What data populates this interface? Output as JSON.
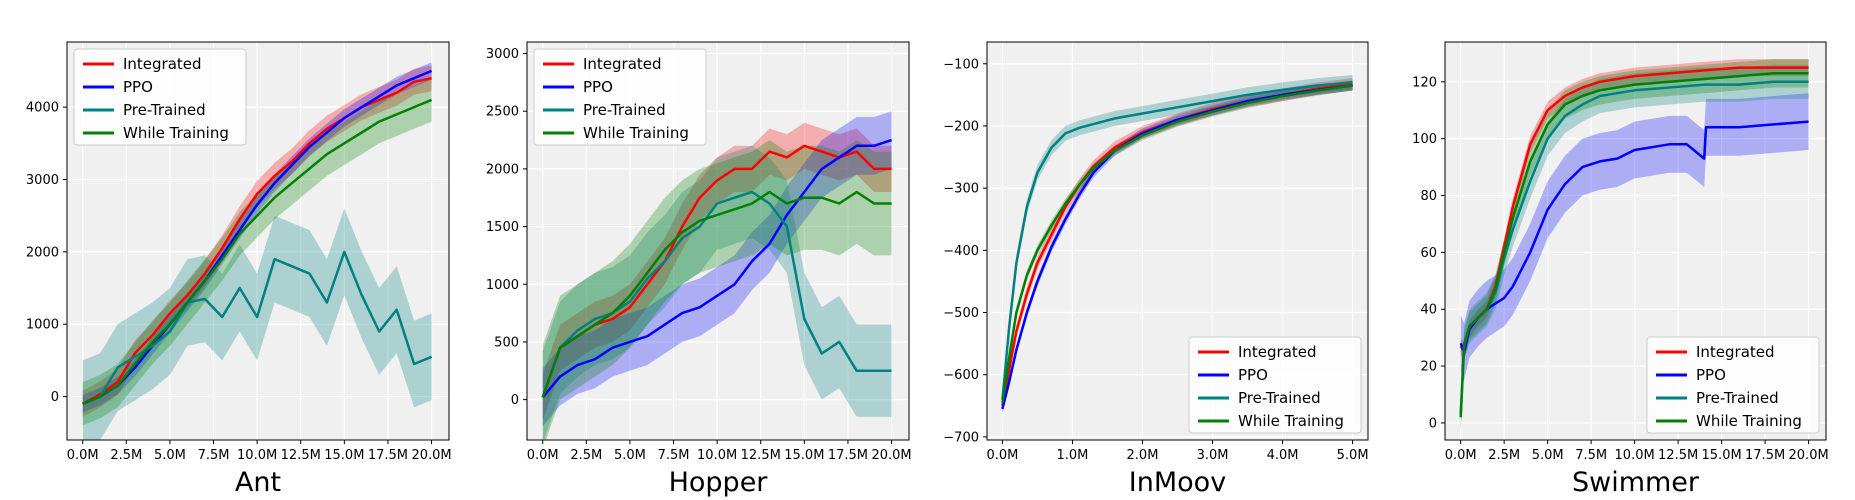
{
  "figure": {
    "background": "#ffffff",
    "plot_background": "#f0f0f0",
    "grid_color": "#ffffff"
  },
  "legend_labels": [
    "Integrated",
    "PPO",
    "Pre-Trained",
    "While Training"
  ],
  "colors": {
    "Integrated": "#ff0000",
    "PPO": "#0000ff",
    "Pre-Trained": "#008080",
    "While Training": "#008000"
  },
  "chart_data": [
    {
      "type": "line",
      "title": "Ant",
      "xlabel": "",
      "ylabel": "",
      "xlim": [
        -0.9,
        21.0
      ],
      "ylim": [
        -600,
        4900
      ],
      "xticks": [
        0,
        2.5,
        5,
        7.5,
        10,
        12.5,
        15,
        17.5,
        20
      ],
      "xticklabels": [
        "0.0M",
        "2.5M",
        "5.0M",
        "7.5M",
        "10.0M",
        "12.5M",
        "15.0M",
        "17.5M",
        "20.0M"
      ],
      "yticks": [
        0,
        1000,
        2000,
        3000,
        4000
      ],
      "yticklabels": [
        "0",
        "1000",
        "2000",
        "3000",
        "4000"
      ],
      "grid": true,
      "legend_position": "upper-left",
      "series": [
        {
          "name": "Integrated",
          "x": [
            0,
            1,
            2,
            3,
            4,
            5,
            6,
            7,
            8,
            9,
            10,
            11,
            12,
            13,
            14,
            15,
            16,
            17,
            18,
            19,
            20
          ],
          "y": [
            -100,
            30,
            200,
            600,
            850,
            1150,
            1400,
            1700,
            2050,
            2450,
            2800,
            3050,
            3250,
            3500,
            3700,
            3850,
            4000,
            4100,
            4200,
            4350,
            4400
          ],
          "band": 180
        },
        {
          "name": "PPO",
          "x": [
            0,
            1,
            2,
            3,
            4,
            5,
            6,
            7,
            8,
            9,
            10,
            11,
            12,
            13,
            14,
            15,
            16,
            17,
            18,
            19,
            20
          ],
          "y": [
            -100,
            0,
            150,
            400,
            700,
            1000,
            1300,
            1600,
            1950,
            2300,
            2650,
            2950,
            3200,
            3450,
            3650,
            3850,
            4000,
            4150,
            4300,
            4400,
            4500
          ],
          "band": 120
        },
        {
          "name": "Pre-Trained",
          "x": [
            0,
            1,
            2,
            3,
            4,
            5,
            6,
            7,
            8,
            9,
            10,
            11,
            12,
            13,
            14,
            15,
            16,
            17,
            18,
            19,
            20
          ],
          "y": [
            -100,
            0,
            400,
            550,
            700,
            900,
            1300,
            1350,
            1100,
            1500,
            1100,
            1900,
            1800,
            1700,
            1300,
            2000,
            1400,
            900,
            1200,
            450,
            550
          ],
          "band": 600
        },
        {
          "name": "While Training",
          "x": [
            0,
            1,
            2,
            3,
            4,
            5,
            6,
            7,
            8,
            9,
            10,
            11,
            12,
            13,
            14,
            15,
            16,
            17,
            18,
            19,
            20
          ],
          "y": [
            -100,
            0,
            150,
            450,
            750,
            1000,
            1300,
            1600,
            1900,
            2250,
            2500,
            2750,
            2950,
            3150,
            3350,
            3500,
            3650,
            3800,
            3900,
            4000,
            4100
          ],
          "band": 300
        }
      ]
    },
    {
      "type": "line",
      "title": "Hopper",
      "xlabel": "",
      "ylabel": "",
      "xlim": [
        -0.9,
        21.0
      ],
      "ylim": [
        -350,
        3100
      ],
      "xticks": [
        0,
        2.5,
        5,
        7.5,
        10,
        12.5,
        15,
        17.5,
        20
      ],
      "xticklabels": [
        "0.0M",
        "2.5M",
        "5.0M",
        "7.5M",
        "10.0M",
        "12.5M",
        "15.0M",
        "17.5M",
        "20.0M"
      ],
      "yticks": [
        0,
        500,
        1000,
        1500,
        2000,
        2500,
        3000
      ],
      "yticklabels": [
        "0",
        "500",
        "1000",
        "1500",
        "2000",
        "2500",
        "3000"
      ],
      "grid": true,
      "legend_position": "upper-left",
      "series": [
        {
          "name": "Integrated",
          "x": [
            0,
            1,
            2,
            3,
            4,
            5,
            6,
            7,
            8,
            9,
            10,
            11,
            12,
            13,
            14,
            15,
            16,
            17,
            18,
            19,
            20
          ],
          "y": [
            20,
            450,
            550,
            650,
            700,
            800,
            1000,
            1200,
            1500,
            1750,
            1900,
            2000,
            2000,
            2150,
            2100,
            2200,
            2150,
            2100,
            2150,
            2000,
            2000
          ],
          "band": 200
        },
        {
          "name": "PPO",
          "x": [
            0,
            1,
            2,
            3,
            4,
            5,
            6,
            7,
            8,
            9,
            10,
            11,
            12,
            13,
            14,
            15,
            16,
            17,
            18,
            19,
            20
          ],
          "y": [
            20,
            200,
            300,
            350,
            450,
            500,
            550,
            650,
            750,
            800,
            900,
            1000,
            1200,
            1350,
            1600,
            1800,
            2000,
            2100,
            2200,
            2200,
            2250
          ],
          "band": 250
        },
        {
          "name": "Pre-Trained",
          "x": [
            0,
            1,
            2,
            3,
            4,
            5,
            6,
            7,
            8,
            9,
            10,
            11,
            12,
            13,
            14,
            15,
            16,
            17,
            18,
            19,
            20
          ],
          "y": [
            20,
            450,
            600,
            700,
            750,
            850,
            1050,
            1200,
            1400,
            1500,
            1700,
            1750,
            1800,
            1700,
            1500,
            700,
            400,
            500,
            250,
            250,
            250
          ],
          "band": 400
        },
        {
          "name": "While Training",
          "x": [
            0,
            1,
            2,
            3,
            4,
            5,
            6,
            7,
            8,
            9,
            10,
            11,
            12,
            13,
            14,
            15,
            16,
            17,
            18,
            19,
            20
          ],
          "y": [
            20,
            450,
            550,
            650,
            750,
            900,
            1100,
            1300,
            1450,
            1550,
            1600,
            1650,
            1700,
            1800,
            1700,
            1750,
            1750,
            1700,
            1800,
            1700,
            1700
          ],
          "band": 450
        }
      ]
    },
    {
      "type": "line",
      "title": "InMoov",
      "xlabel": "",
      "ylabel": "",
      "xlim": [
        -0.22,
        5.22
      ],
      "ylim": [
        -705,
        -65
      ],
      "xticks": [
        0,
        1,
        2,
        3,
        4,
        5
      ],
      "xticklabels": [
        "0.0M",
        "1.0M",
        "2.0M",
        "3.0M",
        "4.0M",
        "5.0M"
      ],
      "yticks": [
        -700,
        -600,
        -500,
        -400,
        -300,
        -200,
        -100
      ],
      "yticklabels": [
        "−700",
        "−600",
        "−500",
        "−400",
        "−300",
        "−200",
        "−100"
      ],
      "grid": true,
      "legend_position": "lower-right",
      "series": [
        {
          "name": "Integrated",
          "x": [
            0,
            0.1,
            0.2,
            0.35,
            0.5,
            0.7,
            0.9,
            1.1,
            1.3,
            1.6,
            2,
            2.5,
            3,
            3.5,
            4,
            4.5,
            5
          ],
          "y": [
            -650,
            -590,
            -530,
            -470,
            -420,
            -375,
            -330,
            -295,
            -265,
            -235,
            -210,
            -190,
            -173,
            -160,
            -150,
            -140,
            -133
          ],
          "band": 10
        },
        {
          "name": "PPO",
          "x": [
            0,
            0.1,
            0.2,
            0.35,
            0.5,
            0.7,
            0.9,
            1.1,
            1.3,
            1.6,
            2,
            2.5,
            3,
            3.5,
            4,
            4.5,
            5
          ],
          "y": [
            -655,
            -610,
            -560,
            -500,
            -450,
            -395,
            -350,
            -310,
            -275,
            -240,
            -212,
            -190,
            -175,
            -160,
            -150,
            -142,
            -135
          ],
          "band": 8
        },
        {
          "name": "Pre-Trained",
          "x": [
            0,
            0.1,
            0.2,
            0.35,
            0.5,
            0.7,
            0.9,
            1.1,
            1.3,
            1.6,
            2,
            2.5,
            3,
            3.5,
            4,
            4.5,
            5
          ],
          "y": [
            -640,
            -520,
            -420,
            -330,
            -275,
            -235,
            -212,
            -203,
            -197,
            -188,
            -180,
            -170,
            -160,
            -150,
            -142,
            -135,
            -130
          ],
          "band": 12
        },
        {
          "name": "While Training",
          "x": [
            0,
            0.1,
            0.2,
            0.35,
            0.5,
            0.7,
            0.9,
            1.1,
            1.3,
            1.6,
            2,
            2.5,
            3,
            3.5,
            4,
            4.5,
            5
          ],
          "y": [
            -645,
            -570,
            -500,
            -440,
            -400,
            -360,
            -325,
            -295,
            -268,
            -240,
            -215,
            -193,
            -177,
            -163,
            -152,
            -143,
            -135
          ],
          "band": 8
        }
      ]
    },
    {
      "type": "line",
      "title": "Swimmer",
      "xlabel": "",
      "ylabel": "",
      "xlim": [
        -0.9,
        21.0
      ],
      "ylim": [
        -6,
        134
      ],
      "xticks": [
        0,
        2.5,
        5,
        7.5,
        10,
        12.5,
        15,
        17.5,
        20
      ],
      "xticklabels": [
        "0.0M",
        "2.5M",
        "5.0M",
        "7.5M",
        "10.0M",
        "12.5M",
        "15.0M",
        "17.5M",
        "20.0M"
      ],
      "yticks": [
        0,
        20,
        40,
        60,
        80,
        100,
        120
      ],
      "yticklabels": [
        "0",
        "20",
        "40",
        "60",
        "80",
        "100",
        "120"
      ],
      "grid": true,
      "legend_position": "lower-right",
      "series": [
        {
          "name": "Integrated",
          "x": [
            0,
            0.2,
            0.5,
            1,
            1.5,
            2,
            2.5,
            3,
            4,
            5,
            6,
            7,
            8,
            10,
            12,
            14,
            16,
            18,
            20
          ],
          "y": [
            27,
            25,
            33,
            37,
            40,
            48,
            62,
            76,
            98,
            110,
            115,
            118,
            120,
            122,
            123,
            124,
            125,
            125,
            125
          ],
          "band": 3
        },
        {
          "name": "PPO",
          "x": [
            0,
            0.2,
            0.5,
            1,
            1.5,
            2,
            2.5,
            3,
            4,
            5,
            6,
            7,
            8,
            9,
            10,
            11,
            12,
            13,
            14,
            14.1,
            16,
            18,
            20
          ],
          "y": [
            28,
            25,
            33,
            37,
            40,
            42,
            44,
            48,
            60,
            75,
            84,
            90,
            92,
            93,
            96,
            97,
            98,
            98,
            93,
            104,
            104,
            105,
            106
          ],
          "band": 10
        },
        {
          "name": "Pre-Trained",
          "x": [
            0,
            0.2,
            0.5,
            1,
            1.5,
            2,
            2.5,
            3,
            4,
            5,
            6,
            7,
            8,
            10,
            12,
            14,
            16,
            18,
            20
          ],
          "y": [
            3,
            28,
            34,
            37,
            40,
            46,
            58,
            68,
            85,
            100,
            108,
            112,
            115,
            117,
            118,
            119,
            119,
            120,
            120
          ],
          "band": 6
        },
        {
          "name": "While Training",
          "x": [
            0,
            0.2,
            0.5,
            1,
            1.5,
            2,
            2.5,
            3,
            4,
            5,
            6,
            7,
            8,
            10,
            12,
            14,
            16,
            18,
            20
          ],
          "y": [
            2,
            27,
            34,
            37,
            40,
            47,
            60,
            72,
            92,
            105,
            112,
            115,
            117,
            119,
            120,
            121,
            122,
            123,
            123
          ],
          "band": 5
        }
      ]
    }
  ]
}
